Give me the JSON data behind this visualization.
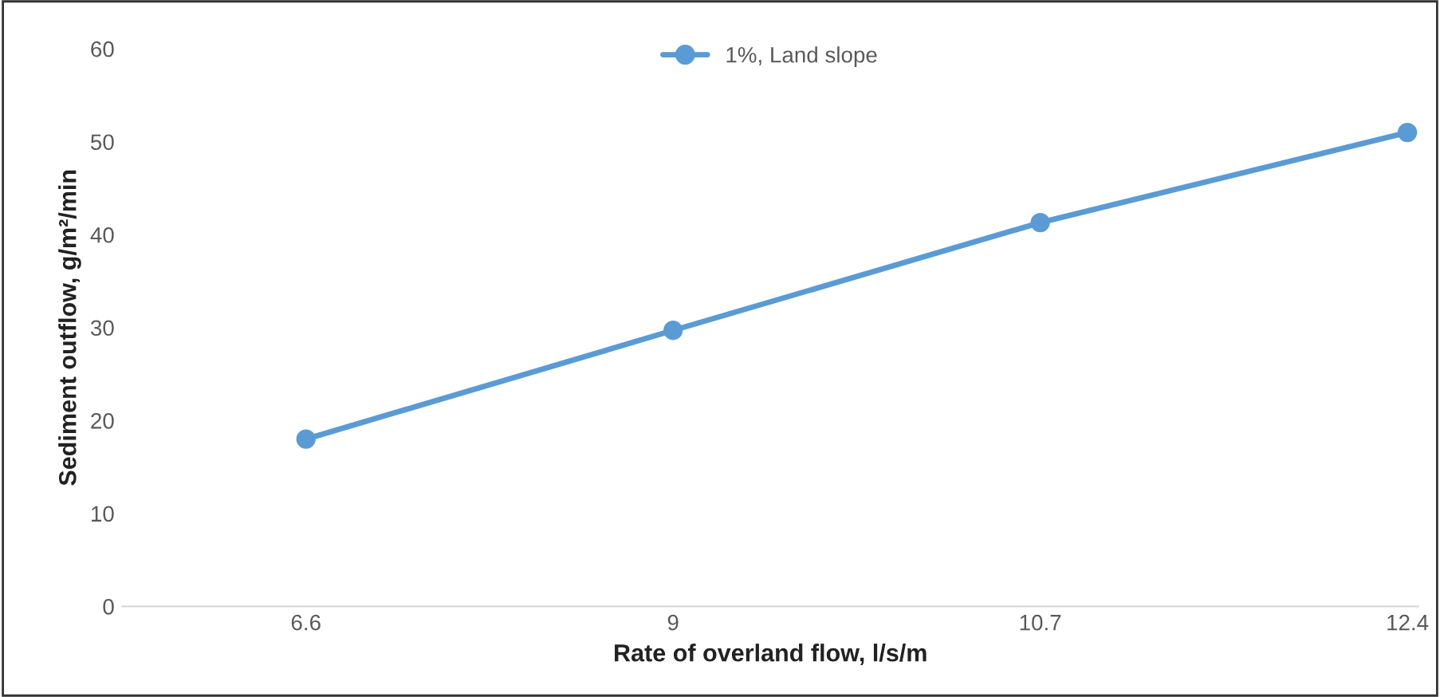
{
  "chart_data": {
    "type": "line",
    "xlabel": "Rate of overland flow, l/s/m",
    "ylabel": "Sediment outflow, g/m²/min",
    "categories": [
      "6.6",
      "9",
      "10.7",
      "12.4"
    ],
    "series": [
      {
        "name": "1%, Land slope",
        "color": "#5b9bd5",
        "values": [
          18,
          29.7,
          41.3,
          51
        ]
      }
    ],
    "ylim": [
      0,
      60
    ],
    "yticks": [
      0,
      10,
      20,
      30,
      40,
      50,
      60
    ],
    "grid": false,
    "legend": "top",
    "marker": "circle",
    "line_style": "solid"
  }
}
